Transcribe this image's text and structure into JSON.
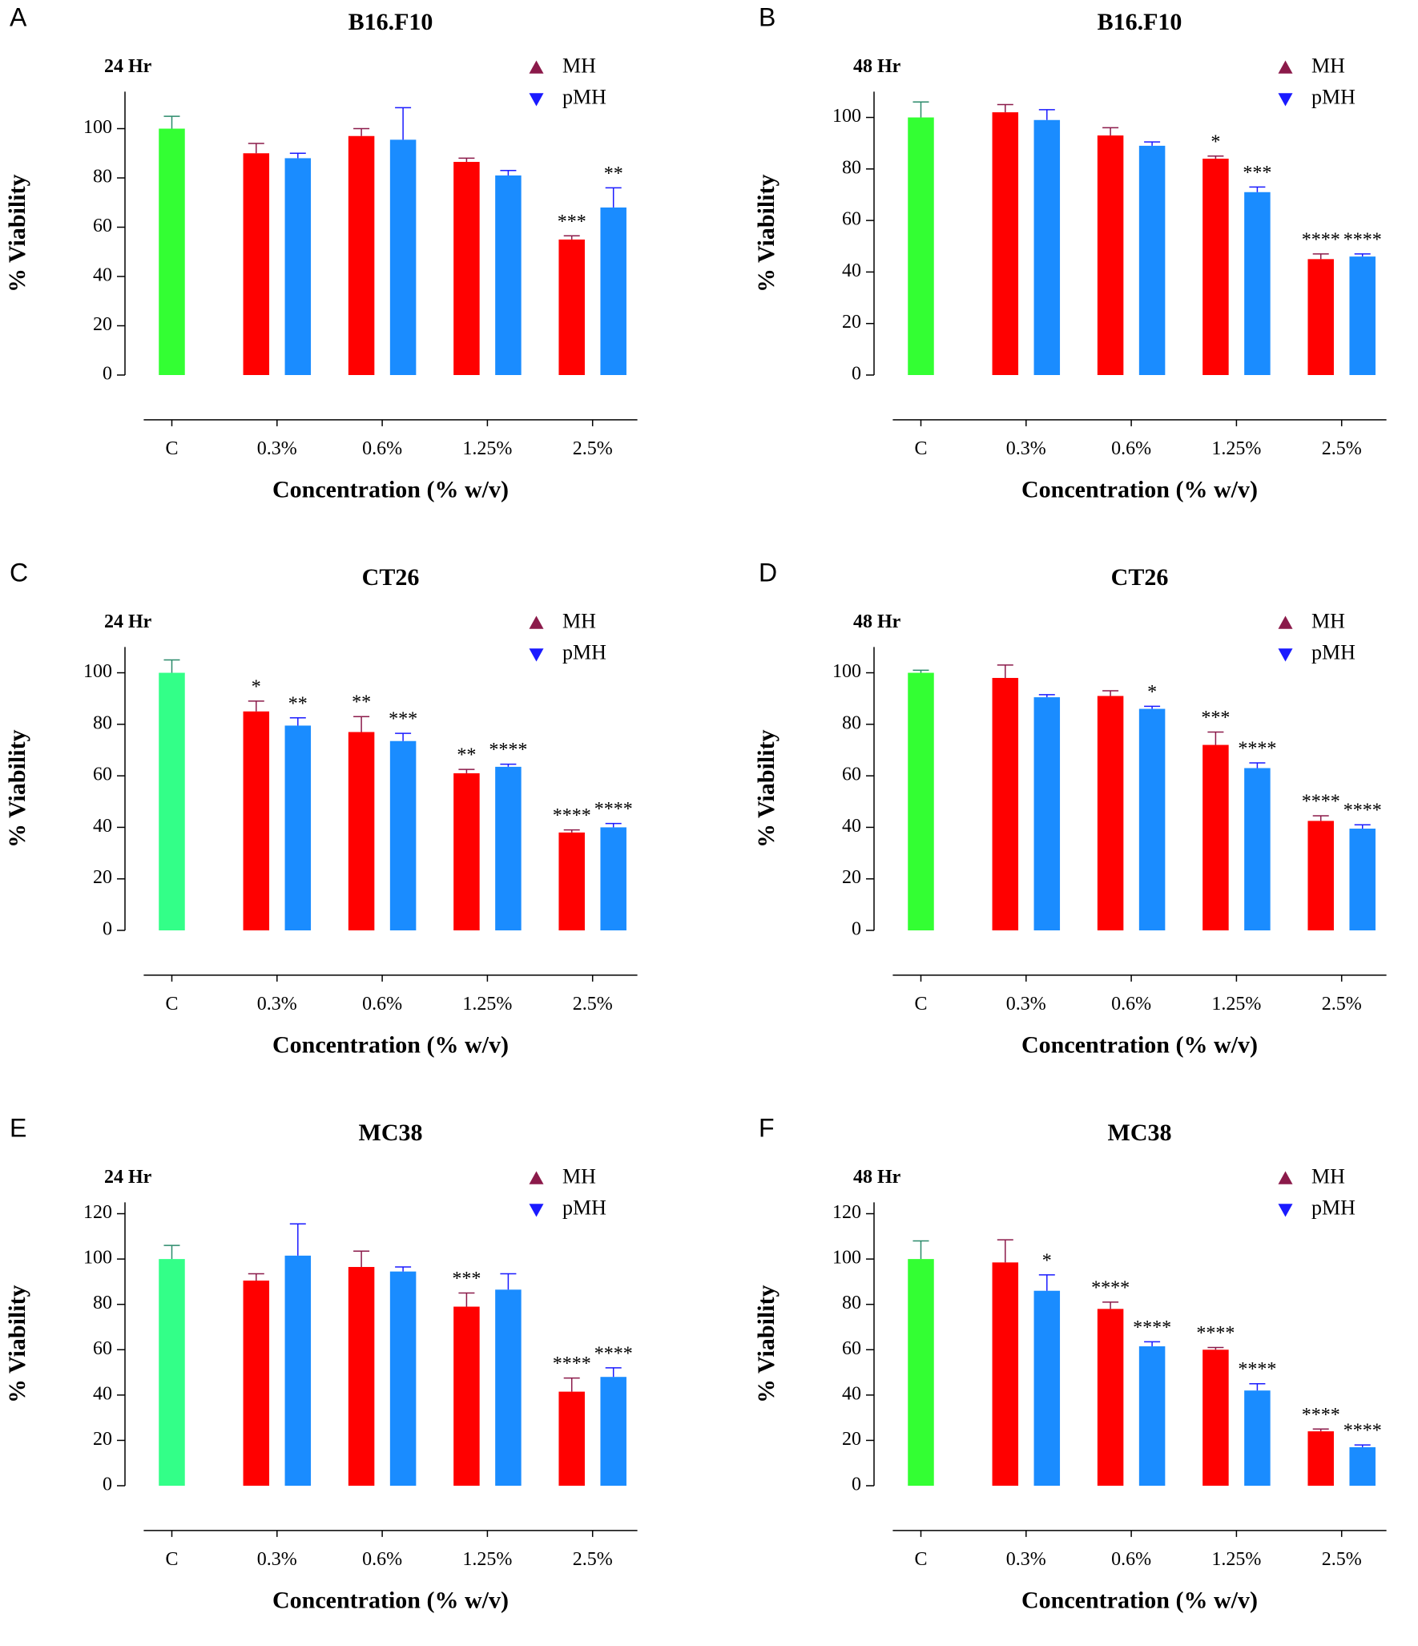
{
  "chart_data": [
    {
      "type": "bar",
      "panel": "A",
      "title": "B16.F10",
      "subtitle": "24 Hr",
      "xlabel": "Concentration (% w/v)",
      "ylabel": "% Viability",
      "categories": [
        "C",
        "0.3%",
        "0.6%",
        "1.25%",
        "2.5%"
      ],
      "control": {
        "value": 100,
        "error": 5,
        "color": "#33ff33"
      },
      "series": [
        {
          "name": "MH",
          "color": "#ff0000",
          "marker_color": "#8b1a4a",
          "values": [
            null,
            90,
            97,
            86.5,
            55
          ],
          "errors": [
            null,
            4,
            3,
            1.5,
            1.5
          ],
          "annotations": [
            null,
            null,
            null,
            null,
            "***"
          ]
        },
        {
          "name": "pMH",
          "color": "#1a8cff",
          "marker_color": "#1a1aff",
          "values": [
            null,
            88,
            95.5,
            81,
            68
          ],
          "errors": [
            null,
            2,
            13,
            2,
            8
          ],
          "annotations": [
            null,
            null,
            null,
            null,
            "**"
          ]
        }
      ],
      "ylim": [
        0,
        115
      ],
      "yticks": [
        0,
        20,
        40,
        60,
        80,
        100
      ]
    },
    {
      "type": "bar",
      "panel": "B",
      "title": "B16.F10",
      "subtitle": "48 Hr",
      "xlabel": "Concentration (% w/v)",
      "ylabel": "% Viability",
      "categories": [
        "C",
        "0.3%",
        "0.6%",
        "1.25%",
        "2.5%"
      ],
      "control": {
        "value": 100,
        "error": 6,
        "color": "#33ff33"
      },
      "series": [
        {
          "name": "MH",
          "color": "#ff0000",
          "marker_color": "#8b1a4a",
          "values": [
            null,
            102,
            93,
            84,
            45
          ],
          "errors": [
            null,
            3,
            3,
            1,
            2
          ],
          "annotations": [
            null,
            null,
            null,
            "*",
            "****"
          ]
        },
        {
          "name": "pMH",
          "color": "#1a8cff",
          "marker_color": "#1a1aff",
          "values": [
            null,
            99,
            89,
            71,
            46
          ],
          "errors": [
            null,
            4,
            1.5,
            2,
            1
          ],
          "annotations": [
            null,
            null,
            null,
            "***",
            "****"
          ]
        }
      ],
      "ylim": [
        0,
        110
      ],
      "yticks": [
        0,
        20,
        40,
        60,
        80,
        100
      ]
    },
    {
      "type": "bar",
      "panel": "C",
      "title": "CT26",
      "subtitle": "24 Hr",
      "xlabel": "Concentration (% w/v)",
      "ylabel": "% Viability",
      "categories": [
        "C",
        "0.3%",
        "0.6%",
        "1.25%",
        "2.5%"
      ],
      "control": {
        "value": 100,
        "error": 5,
        "color": "#33ff88"
      },
      "series": [
        {
          "name": "MH",
          "color": "#ff0000",
          "marker_color": "#8b1a4a",
          "values": [
            null,
            85,
            77,
            61,
            38
          ],
          "errors": [
            null,
            4,
            6,
            1.5,
            1
          ],
          "annotations": [
            null,
            "*",
            "**",
            "**",
            "****"
          ]
        },
        {
          "name": "pMH",
          "color": "#1a8cff",
          "marker_color": "#1a1aff",
          "values": [
            null,
            79.5,
            73.5,
            63.5,
            40
          ],
          "errors": [
            null,
            3,
            3,
            1,
            1.5
          ],
          "annotations": [
            null,
            "**",
            "***",
            "****",
            "****"
          ]
        }
      ],
      "ylim": [
        0,
        110
      ],
      "yticks": [
        0,
        20,
        40,
        60,
        80,
        100
      ]
    },
    {
      "type": "bar",
      "panel": "D",
      "title": "CT26",
      "subtitle": "48 Hr",
      "xlabel": "Concentration (% w/v)",
      "ylabel": "% Viability",
      "categories": [
        "C",
        "0.3%",
        "0.6%",
        "1.25%",
        "2.5%"
      ],
      "control": {
        "value": 100,
        "error": 1,
        "color": "#33ff33"
      },
      "series": [
        {
          "name": "MH",
          "color": "#ff0000",
          "marker_color": "#8b1a4a",
          "values": [
            null,
            98,
            91,
            72,
            42.5
          ],
          "errors": [
            null,
            5,
            2,
            5,
            2
          ],
          "annotations": [
            null,
            null,
            null,
            "***",
            "****"
          ]
        },
        {
          "name": "pMH",
          "color": "#1a8cff",
          "marker_color": "#1a1aff",
          "values": [
            null,
            90.5,
            86,
            63,
            39.5
          ],
          "errors": [
            null,
            1,
            1,
            2,
            1.5
          ],
          "annotations": [
            null,
            null,
            "*",
            "****",
            "****"
          ]
        }
      ],
      "ylim": [
        0,
        110
      ],
      "yticks": [
        0,
        20,
        40,
        60,
        80,
        100
      ]
    },
    {
      "type": "bar",
      "panel": "E",
      "title": "MC38",
      "subtitle": "24 Hr",
      "xlabel": "Concentration (% w/v)",
      "ylabel": "% Viability",
      "categories": [
        "C",
        "0.3%",
        "0.6%",
        "1.25%",
        "2.5%"
      ],
      "control": {
        "value": 100,
        "error": 6,
        "color": "#33ff88"
      },
      "series": [
        {
          "name": "MH",
          "color": "#ff0000",
          "marker_color": "#8b1a4a",
          "values": [
            null,
            90.5,
            96.5,
            79,
            41.5
          ],
          "errors": [
            null,
            3,
            7,
            6,
            6
          ],
          "annotations": [
            null,
            null,
            null,
            "***",
            "****"
          ]
        },
        {
          "name": "pMH",
          "color": "#1a8cff",
          "marker_color": "#1a1aff",
          "values": [
            null,
            101.5,
            94.5,
            86.5,
            48
          ],
          "errors": [
            null,
            14,
            2,
            7,
            4
          ],
          "annotations": [
            null,
            null,
            null,
            null,
            "****"
          ]
        }
      ],
      "ylim": [
        0,
        125
      ],
      "yticks": [
        0,
        20,
        40,
        60,
        80,
        100,
        120
      ]
    },
    {
      "type": "bar",
      "panel": "F",
      "title": "MC38",
      "subtitle": "48 Hr",
      "xlabel": "Concentration (% w/v)",
      "ylabel": "% Viability",
      "categories": [
        "C",
        "0.3%",
        "0.6%",
        "1.25%",
        "2.5%"
      ],
      "control": {
        "value": 100,
        "error": 8,
        "color": "#33ff33"
      },
      "series": [
        {
          "name": "MH",
          "color": "#ff0000",
          "marker_color": "#8b1a4a",
          "values": [
            null,
            98.5,
            78,
            60,
            24
          ],
          "errors": [
            null,
            10,
            3,
            1,
            1
          ],
          "annotations": [
            null,
            null,
            "****",
            "****",
            "****"
          ]
        },
        {
          "name": "pMH",
          "color": "#1a8cff",
          "marker_color": "#1a1aff",
          "values": [
            null,
            86,
            61.5,
            42,
            17
          ],
          "errors": [
            null,
            7,
            2,
            3,
            1
          ],
          "annotations": [
            null,
            "*",
            "****",
            "****",
            "****"
          ]
        }
      ],
      "ylim": [
        0,
        125
      ],
      "yticks": [
        0,
        20,
        40,
        60,
        80,
        100,
        120
      ]
    }
  ]
}
